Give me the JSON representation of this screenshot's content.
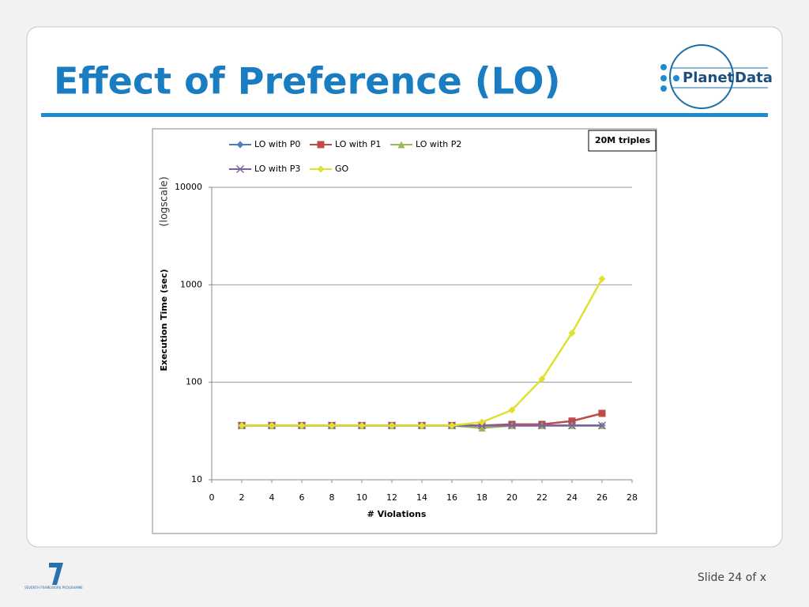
{
  "slide": {
    "title": "Effect of Preference (LO)",
    "footer": "Slide 24 of x"
  },
  "logo": {
    "words": [
      "Planet",
      "Data"
    ]
  },
  "fp7_label": "SEVENTH FRAMEWORK PROGRAMME",
  "chart_data": {
    "type": "line",
    "annotation": "20M triples",
    "ylabel": "Execution Time (sec)",
    "ylabel_note": "(logscale)",
    "xlabel": "# Violations",
    "x": [
      2,
      4,
      6,
      8,
      10,
      12,
      14,
      16,
      18,
      20,
      22,
      24,
      26
    ],
    "xlim": [
      0,
      28
    ],
    "xticks": [
      0,
      2,
      4,
      6,
      8,
      10,
      12,
      14,
      16,
      18,
      20,
      22,
      24,
      26,
      28
    ],
    "ylim": [
      10,
      10000
    ],
    "yticks": [
      10,
      100,
      1000,
      10000
    ],
    "log_scale": true,
    "grid": true,
    "legend": "top",
    "series": [
      {
        "name": "LO with P0",
        "color": "#4a7ebb",
        "marker": "diamond",
        "values": [
          36,
          36,
          36,
          36,
          36,
          36,
          36,
          36,
          36,
          36,
          36,
          36,
          36
        ]
      },
      {
        "name": "LO with P1",
        "color": "#be4b48",
        "marker": "square",
        "values": [
          36,
          36,
          36,
          36,
          36,
          36,
          36,
          36,
          36,
          37,
          37,
          40,
          48
        ]
      },
      {
        "name": "LO with P2",
        "color": "#98b954",
        "marker": "triangle",
        "values": [
          36,
          36,
          36,
          36,
          36,
          36,
          36,
          36,
          34,
          36,
          36,
          36,
          36
        ]
      },
      {
        "name": "LO with P3",
        "color": "#7d60a0",
        "marker": "x",
        "values": [
          36,
          36,
          36,
          36,
          36,
          36,
          36,
          36,
          36,
          36,
          36,
          36,
          36
        ]
      },
      {
        "name": "GO",
        "color": "#e0e030",
        "marker": "diamond",
        "values": [
          36,
          36,
          36,
          36,
          36,
          36,
          36,
          36,
          39,
          52,
          108,
          320,
          1150
        ]
      }
    ]
  }
}
